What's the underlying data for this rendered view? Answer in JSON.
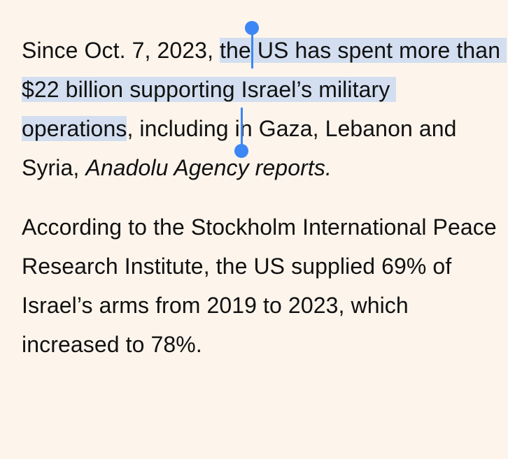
{
  "article": {
    "paragraph1": {
      "before_selection": "Since Oct. 7, 2023, ",
      "selected": "the US has spent more than $22 billion supporting Israel’s military operations",
      "after_selection": ", including in Gaza, Lebanon and Syria, ",
      "source": "Anadolu Agency reports."
    },
    "paragraph2": {
      "text": "According to the Stockholm International Peace Research Institute, the US supplied 69% of Israel’s arms from 2019 to 2023, which increased to 78%."
    }
  },
  "selection": {
    "highlight_color": "#d3dff0",
    "handle_color": "#3d86f5"
  }
}
